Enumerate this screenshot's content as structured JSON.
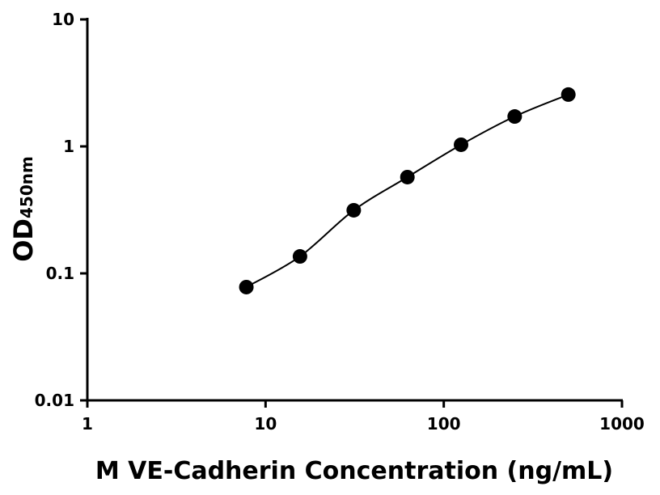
{
  "chart_data": {
    "type": "scatter",
    "x_label": "M VE-Cadherin Concentration (ng/mL)",
    "y_label": "OD",
    "y_label_subscript": "450nm",
    "x": [
      7.8,
      15.6,
      31.25,
      62.5,
      125,
      250,
      500
    ],
    "values": [
      0.078,
      0.136,
      0.314,
      0.573,
      1.03,
      1.72,
      2.56
    ],
    "color": "#000000",
    "connect_line": true,
    "x_log": true,
    "y_log": true,
    "xlim": [
      1,
      1000
    ],
    "xticks": [
      1,
      10,
      100,
      1000
    ],
    "ylim": [
      0.01,
      10
    ],
    "yticks": [
      0.01,
      0.1,
      1,
      10
    ]
  }
}
